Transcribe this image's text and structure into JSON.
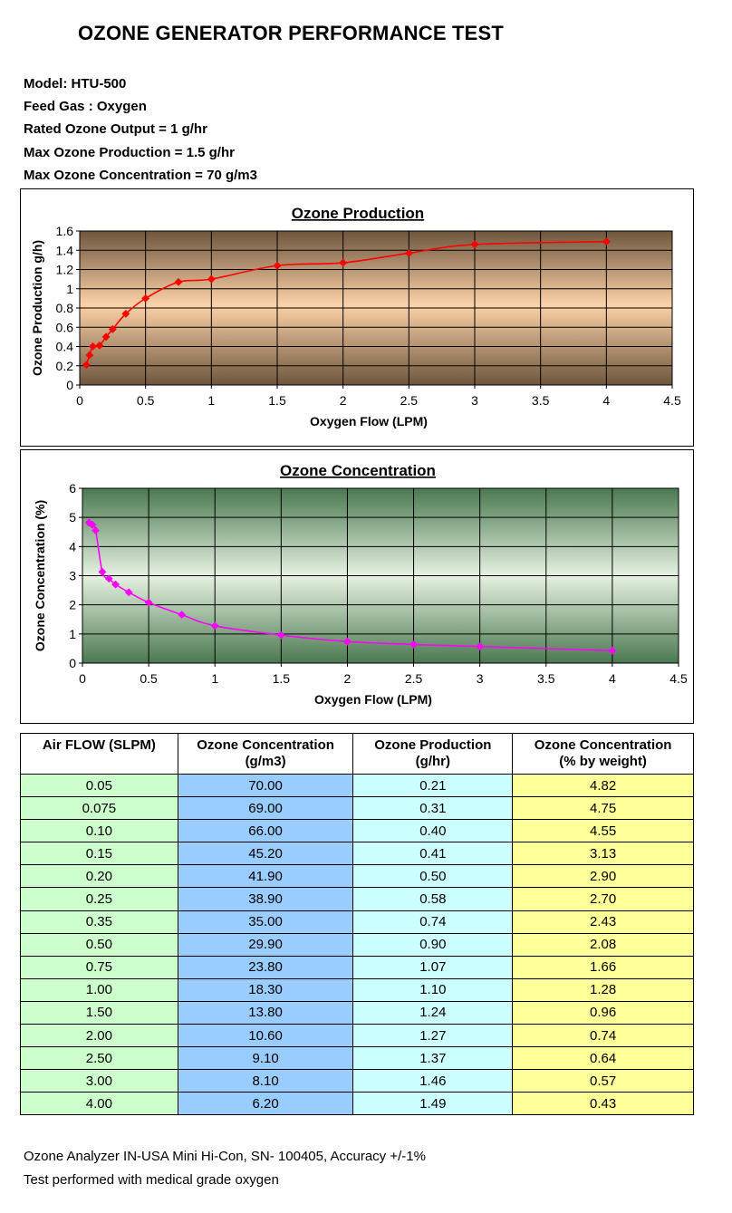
{
  "title": "OZONE GENERATOR PERFORMANCE TEST",
  "specs": [
    "Model: HTU-500",
    "Feed Gas :  Oxygen",
    "Rated Ozone Output = 1 g/hr",
    "Max Ozone Production = 1.5 g/hr",
    "Max Ozone Concentration = 70 g/m3"
  ],
  "chart_data": [
    {
      "type": "line",
      "title": "Ozone Production",
      "xlabel": "Oxygen Flow (LPM)",
      "ylabel": "Ozone Production g/h)",
      "xlim": [
        0,
        4.5
      ],
      "ylim": [
        0,
        1.6
      ],
      "xticks": [
        "0",
        "0.5",
        "1",
        "1.5",
        "2",
        "2.5",
        "3",
        "3.5",
        "4",
        "4.5"
      ],
      "yticks": [
        "0",
        "0.2",
        "0.4",
        "0.6",
        "0.8",
        "1",
        "1.2",
        "1.4",
        "1.6"
      ],
      "grid": true,
      "color": "#ff0000",
      "x": [
        0.05,
        0.075,
        0.1,
        0.15,
        0.2,
        0.25,
        0.35,
        0.5,
        0.75,
        1.0,
        1.5,
        2.0,
        2.5,
        3.0,
        4.0
      ],
      "y": [
        0.21,
        0.31,
        0.4,
        0.41,
        0.5,
        0.58,
        0.74,
        0.9,
        1.07,
        1.1,
        1.24,
        1.27,
        1.37,
        1.46,
        1.49
      ]
    },
    {
      "type": "line",
      "title": "Ozone Concentration",
      "xlabel": "Oxygen Flow (LPM)",
      "ylabel": "Ozone Concentration (%)",
      "xlim": [
        0,
        4.5
      ],
      "ylim": [
        0,
        6
      ],
      "xticks": [
        "0",
        "0.5",
        "1",
        "1.5",
        "2",
        "2.5",
        "3",
        "3.5",
        "4",
        "4.5"
      ],
      "yticks": [
        "0",
        "1",
        "2",
        "3",
        "4",
        "5",
        "6"
      ],
      "grid": true,
      "color": "#ff00ff",
      "x": [
        0.05,
        0.075,
        0.1,
        0.15,
        0.2,
        0.25,
        0.35,
        0.5,
        0.75,
        1.0,
        1.5,
        2.0,
        2.5,
        3.0,
        4.0
      ],
      "y": [
        4.82,
        4.75,
        4.55,
        3.13,
        2.9,
        2.7,
        2.43,
        2.08,
        1.66,
        1.28,
        0.96,
        0.74,
        0.64,
        0.57,
        0.43
      ]
    }
  ],
  "table": {
    "headers": [
      [
        "Air FLOW (SLPM)"
      ],
      [
        "Ozone Concentration",
        "(g/m3)"
      ],
      [
        "Ozone Production",
        "(g/hr)"
      ],
      [
        "Ozone Concentration",
        "(% by weight)"
      ]
    ],
    "rows": [
      [
        "0.05",
        "70.00",
        "0.21",
        "4.82"
      ],
      [
        "0.075",
        "69.00",
        "0.31",
        "4.75"
      ],
      [
        "0.10",
        "66.00",
        "0.40",
        "4.55"
      ],
      [
        "0.15",
        "45.20",
        "0.41",
        "3.13"
      ],
      [
        "0.20",
        "41.90",
        "0.50",
        "2.90"
      ],
      [
        "0.25",
        "38.90",
        "0.58",
        "2.70"
      ],
      [
        "0.35",
        "35.00",
        "0.74",
        "2.43"
      ],
      [
        "0.50",
        "29.90",
        "0.90",
        "2.08"
      ],
      [
        "0.75",
        "23.80",
        "1.07",
        "1.66"
      ],
      [
        "1.00",
        "18.30",
        "1.10",
        "1.28"
      ],
      [
        "1.50",
        "13.80",
        "1.24",
        "0.96"
      ],
      [
        "2.00",
        "10.60",
        "1.27",
        "0.74"
      ],
      [
        "2.50",
        "9.10",
        "1.37",
        "0.64"
      ],
      [
        "3.00",
        "8.10",
        "1.46",
        "0.57"
      ],
      [
        "4.00",
        "6.20",
        "1.49",
        "0.43"
      ]
    ]
  },
  "footer": [
    "Ozone Analyzer IN-USA Mini Hi-Con, SN- 100405, Accuracy +/-1%",
    "Test performed with medical grade oxygen"
  ]
}
